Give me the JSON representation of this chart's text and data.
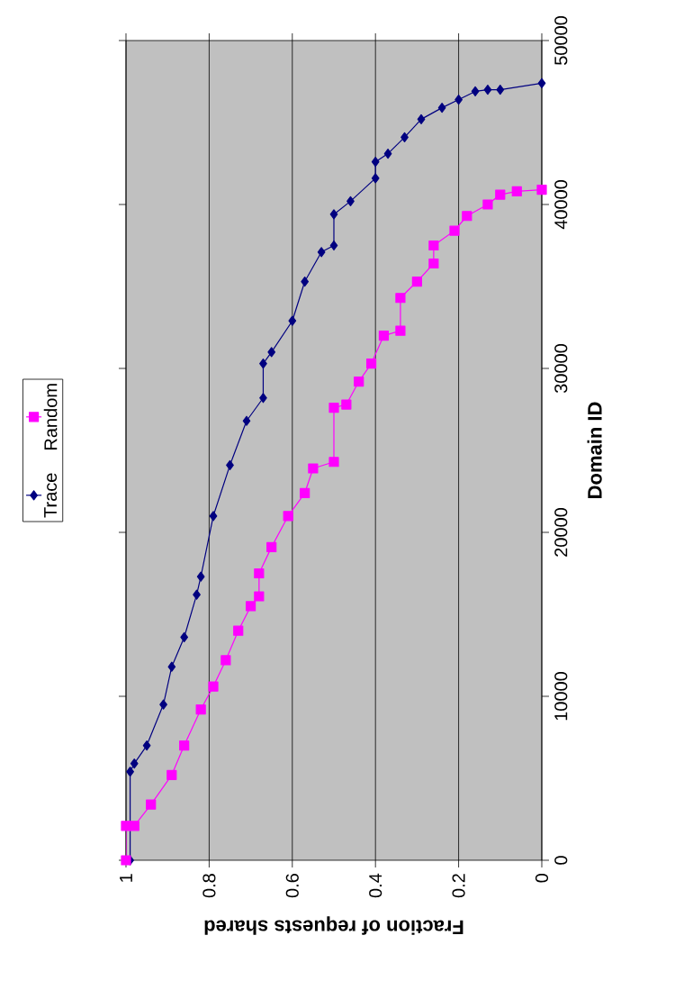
{
  "chart_data": {
    "type": "line",
    "xlabel": "Fraction of requests shared",
    "ylabel": "Domain ID",
    "xlim": [
      1,
      0
    ],
    "xticks": [
      1,
      0.8,
      0.6,
      0.4,
      0.2,
      0
    ],
    "ylim": [
      0,
      50000
    ],
    "yticks": [
      0,
      10000,
      20000,
      30000,
      40000,
      50000
    ],
    "grid": "x",
    "legend": "left",
    "series": [
      {
        "name": "Trace",
        "color": "#000080",
        "marker": "diamond",
        "x": [
          0.99,
          0.99,
          0.98,
          0.95,
          0.91,
          0.89,
          0.86,
          0.83,
          0.82,
          0.79,
          0.75,
          0.71,
          0.67,
          0.67,
          0.65,
          0.6,
          0.57,
          0.53,
          0.5,
          0.5,
          0.46,
          0.4,
          0.4,
          0.37,
          0.33,
          0.29,
          0.24,
          0.2,
          0.16,
          0.13,
          0.1,
          0.0
        ],
        "values": [
          0,
          5400,
          5900,
          7000,
          9500,
          11800,
          13600,
          16200,
          17300,
          21000,
          24100,
          26800,
          28200,
          30300,
          31000,
          32900,
          35300,
          37100,
          37500,
          39400,
          40200,
          41600,
          42600,
          43100,
          44100,
          45200,
          45900,
          46400,
          46900,
          47000,
          47000,
          47400
        ]
      },
      {
        "name": "Random",
        "color": "#ff00ff",
        "marker": "square",
        "x": [
          1.0,
          1.0,
          0.98,
          0.94,
          0.89,
          0.86,
          0.82,
          0.79,
          0.76,
          0.73,
          0.7,
          0.68,
          0.68,
          0.65,
          0.61,
          0.57,
          0.55,
          0.5,
          0.5,
          0.47,
          0.44,
          0.41,
          0.38,
          0.34,
          0.34,
          0.3,
          0.26,
          0.26,
          0.21,
          0.18,
          0.13,
          0.1,
          0.06,
          0.0
        ],
        "values": [
          0,
          2100,
          2100,
          3400,
          5200,
          7000,
          9200,
          10600,
          12200,
          14000,
          15500,
          16100,
          17500,
          19100,
          21000,
          22400,
          23900,
          24300,
          27600,
          27800,
          29200,
          30300,
          32000,
          32300,
          34300,
          35300,
          36400,
          37500,
          38400,
          39300,
          40000,
          40600,
          40800,
          40900
        ]
      }
    ]
  }
}
